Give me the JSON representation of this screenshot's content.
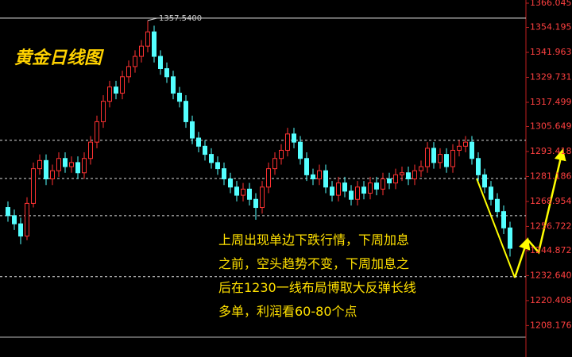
{
  "chart_data": {
    "type": "candlestick",
    "title": "黄金日线图",
    "annotation_lines": [
      "上周出现单边下跌行情，下周加息",
      "之前，空头趋势不变，下周加息之",
      "后在1230一线布局博取大反弹长线",
      "多单，利润看60-80个点"
    ],
    "high_label": {
      "value": 1357.54,
      "label": "1357.5400"
    },
    "ylim": [
      1202.5,
      1366.045
    ],
    "yticks": [
      {
        "value": 1366.045,
        "label": "1366.0450"
      },
      {
        "value": 1354.195,
        "label": "1354.1950"
      },
      {
        "value": 1341.963,
        "label": "1341.9630"
      },
      1329.7315,
      {
        "value": 1317.499,
        "label": "1317.4990"
      },
      1305.6495,
      {
        "value": 1293.418,
        "label": "1293.4180"
      },
      1281.1865,
      1268.9542,
      1256.7227,
      {
        "value": 1244.872,
        "label": "1244.8720"
      },
      1232.6405,
      1220.4085,
      1208.1765
    ],
    "reference_lines": [
      1298.9,
      1280.2,
      1262.0,
      1232.1
    ],
    "up_color": "#ff3232",
    "down_color": "#54ffff",
    "open": [
      1266,
      1262,
      1258,
      1252,
      1268,
      1285,
      1289,
      1280,
      1284,
      1290,
      1286,
      1288,
      1283,
      1290,
      1298,
      1308,
      1318,
      1325,
      1322,
      1330,
      1335,
      1340,
      1345,
      1352,
      1340,
      1334,
      1330,
      1322,
      1318,
      1308,
      1300,
      1296,
      1292,
      1288,
      1285,
      1280,
      1276,
      1272,
      1275,
      1270,
      1266,
      1276,
      1285,
      1290,
      1294,
      1302,
      1298,
      1290,
      1282,
      1280,
      1284,
      1276,
      1272,
      1278,
      1274,
      1270,
      1276,
      1273,
      1278,
      1275,
      1280,
      1278,
      1282,
      1283,
      1280,
      1284,
      1286,
      1295,
      1288,
      1292,
      1286,
      1294,
      1296,
      1298,
      1290,
      1282,
      1276,
      1270,
      1264,
      1256
    ],
    "high": [
      1269,
      1265,
      1261,
      1271,
      1288,
      1292,
      1292,
      1287,
      1293,
      1293,
      1291,
      1291,
      1293,
      1301,
      1311,
      1321,
      1328,
      1328,
      1333,
      1338,
      1343,
      1348,
      1357.54,
      1355,
      1343,
      1337,
      1333,
      1325,
      1321,
      1311,
      1303,
      1299,
      1295,
      1291,
      1288,
      1283,
      1279,
      1278,
      1278,
      1273,
      1279,
      1288,
      1293,
      1297,
      1305,
      1305,
      1301,
      1293,
      1285,
      1287,
      1287,
      1279,
      1281,
      1281,
      1277,
      1279,
      1279,
      1281,
      1281,
      1283,
      1283,
      1285,
      1286,
      1286,
      1287,
      1289,
      1298,
      1298,
      1295,
      1295,
      1297,
      1299,
      1301,
      1301,
      1293,
      1285,
      1279,
      1273,
      1267,
      1259
    ],
    "low": [
      1259,
      1255,
      1248,
      1250,
      1266,
      1282,
      1277,
      1277,
      1281,
      1283,
      1283,
      1280,
      1280,
      1287,
      1295,
      1305,
      1315,
      1319,
      1319,
      1327,
      1332,
      1337,
      1342,
      1337,
      1331,
      1327,
      1319,
      1315,
      1305,
      1297,
      1293,
      1289,
      1285,
      1282,
      1277,
      1273,
      1269,
      1269,
      1267,
      1260,
      1263,
      1273,
      1282,
      1287,
      1291,
      1295,
      1287,
      1279,
      1277,
      1277,
      1273,
      1269,
      1269,
      1271,
      1267,
      1267,
      1270,
      1270,
      1272,
      1272,
      1275,
      1275,
      1279,
      1277,
      1277,
      1281,
      1283,
      1285,
      1285,
      1283,
      1283,
      1291,
      1293,
      1287,
      1279,
      1273,
      1267,
      1261,
      1253,
      1242
    ],
    "close": [
      1262,
      1258,
      1252,
      1268,
      1285,
      1289,
      1280,
      1284,
      1290,
      1286,
      1288,
      1283,
      1290,
      1298,
      1308,
      1318,
      1325,
      1322,
      1330,
      1335,
      1340,
      1345,
      1352,
      1340,
      1334,
      1330,
      1322,
      1318,
      1308,
      1300,
      1296,
      1292,
      1288,
      1285,
      1280,
      1276,
      1272,
      1275,
      1270,
      1266,
      1276,
      1285,
      1290,
      1294,
      1302,
      1298,
      1290,
      1282,
      1280,
      1284,
      1276,
      1272,
      1278,
      1274,
      1270,
      1276,
      1273,
      1278,
      1275,
      1280,
      1278,
      1282,
      1283,
      1280,
      1284,
      1286,
      1295,
      1288,
      1292,
      1286,
      1294,
      1296,
      1298,
      1290,
      1282,
      1276,
      1270,
      1264,
      1256,
      1246
    ]
  }
}
